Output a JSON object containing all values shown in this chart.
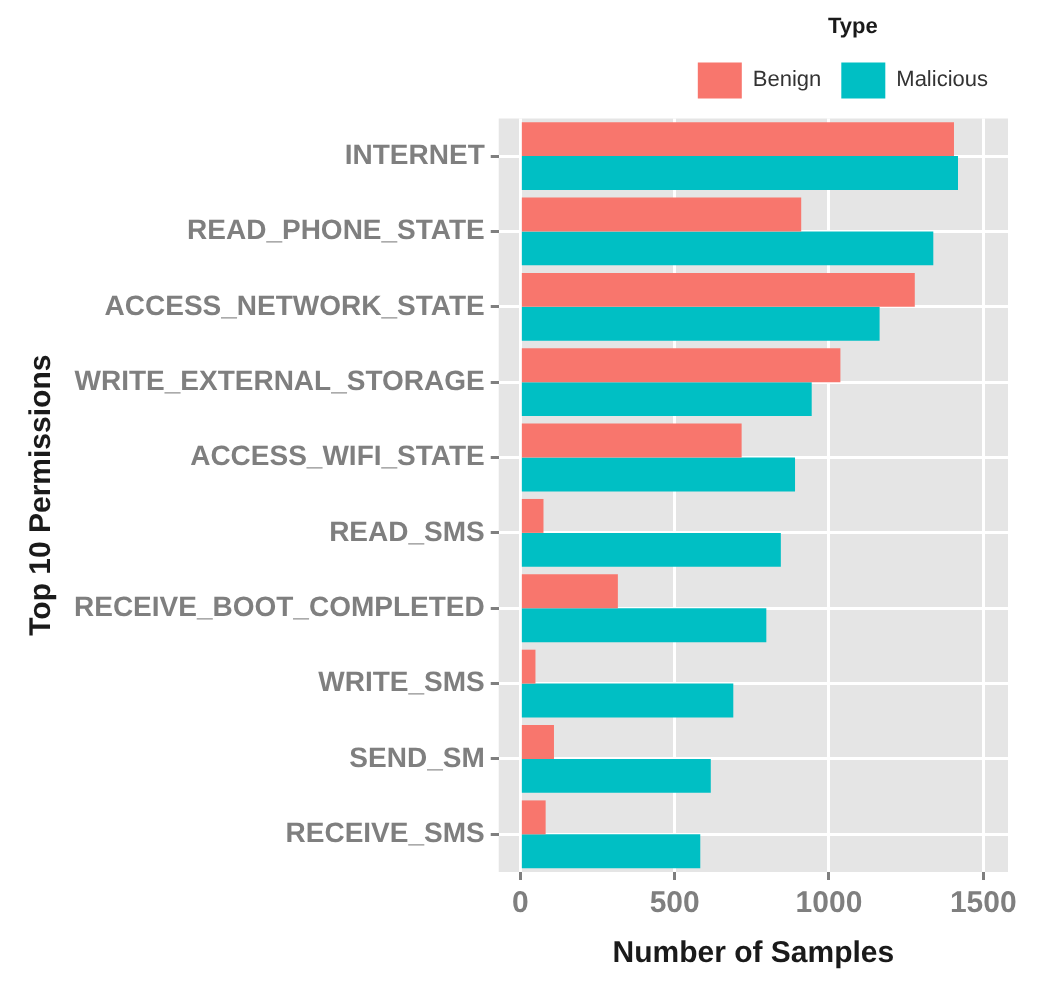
{
  "chart_data": {
    "type": "bar",
    "orientation": "horizontal",
    "xlabel": "Number of Samples",
    "ylabel": "Top 10 Permissions",
    "legend_title": "Type",
    "legend": "top",
    "categories": [
      "INTERNET",
      "READ_PHONE_STATE",
      "ACCESS_NETWORK_STATE",
      "WRITE_EXTERNAL_STORAGE",
      "ACCESS_WIFI_STATE",
      "READ_SMS",
      "RECEIVE_BOOT_COMPLETED",
      "WRITE_SMS",
      "SEND_SM",
      "RECEIVE_SMS"
    ],
    "series": [
      {
        "name": "Benign",
        "color": "#f8766d",
        "values": [
          1405,
          910,
          1278,
          1037,
          717,
          75,
          316,
          49,
          109,
          82
        ]
      },
      {
        "name": "Malicious",
        "color": "#00bfc4",
        "values": [
          1418,
          1338,
          1164,
          944,
          890,
          844,
          797,
          690,
          617,
          583
        ]
      }
    ],
    "xlim": [
      -70,
      1580
    ],
    "xticks": [
      0,
      500,
      1000,
      1500
    ],
    "grid": true
  }
}
